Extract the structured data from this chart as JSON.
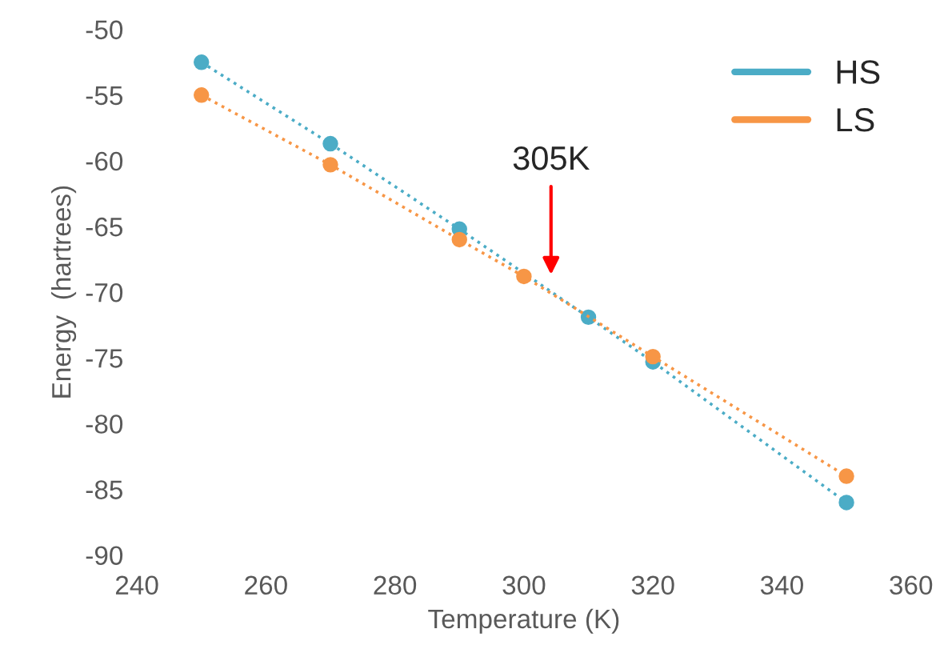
{
  "chart_data": {
    "type": "line",
    "xlabel": "Temperature (K)",
    "ylabel": "Energy  (hartrees)",
    "xlim": [
      240,
      360
    ],
    "xticks": [
      240,
      260,
      280,
      300,
      320,
      340,
      360
    ],
    "ylim": [
      -90,
      -50
    ],
    "yticks": [
      -90,
      -85,
      -80,
      -75,
      -70,
      -65,
      -60,
      -55,
      -50
    ],
    "grid": false,
    "legend": "top right",
    "marker": "circle",
    "line_style": "dotted",
    "series": [
      {
        "name": "HS",
        "color": "#4bacc6",
        "x": [
          250,
          270,
          290,
          310,
          320,
          350
        ],
        "values": [
          -52.5,
          -58.7,
          -65.2,
          -71.9,
          -75.3,
          -86.0
        ]
      },
      {
        "name": "LS",
        "color": "#f79646",
        "x": [
          250,
          270,
          290,
          300,
          320,
          350
        ],
        "values": [
          -55,
          -60.3,
          -66,
          -68.8,
          -74.9,
          -84
        ]
      }
    ],
    "annotations": [
      "305K"
    ]
  }
}
